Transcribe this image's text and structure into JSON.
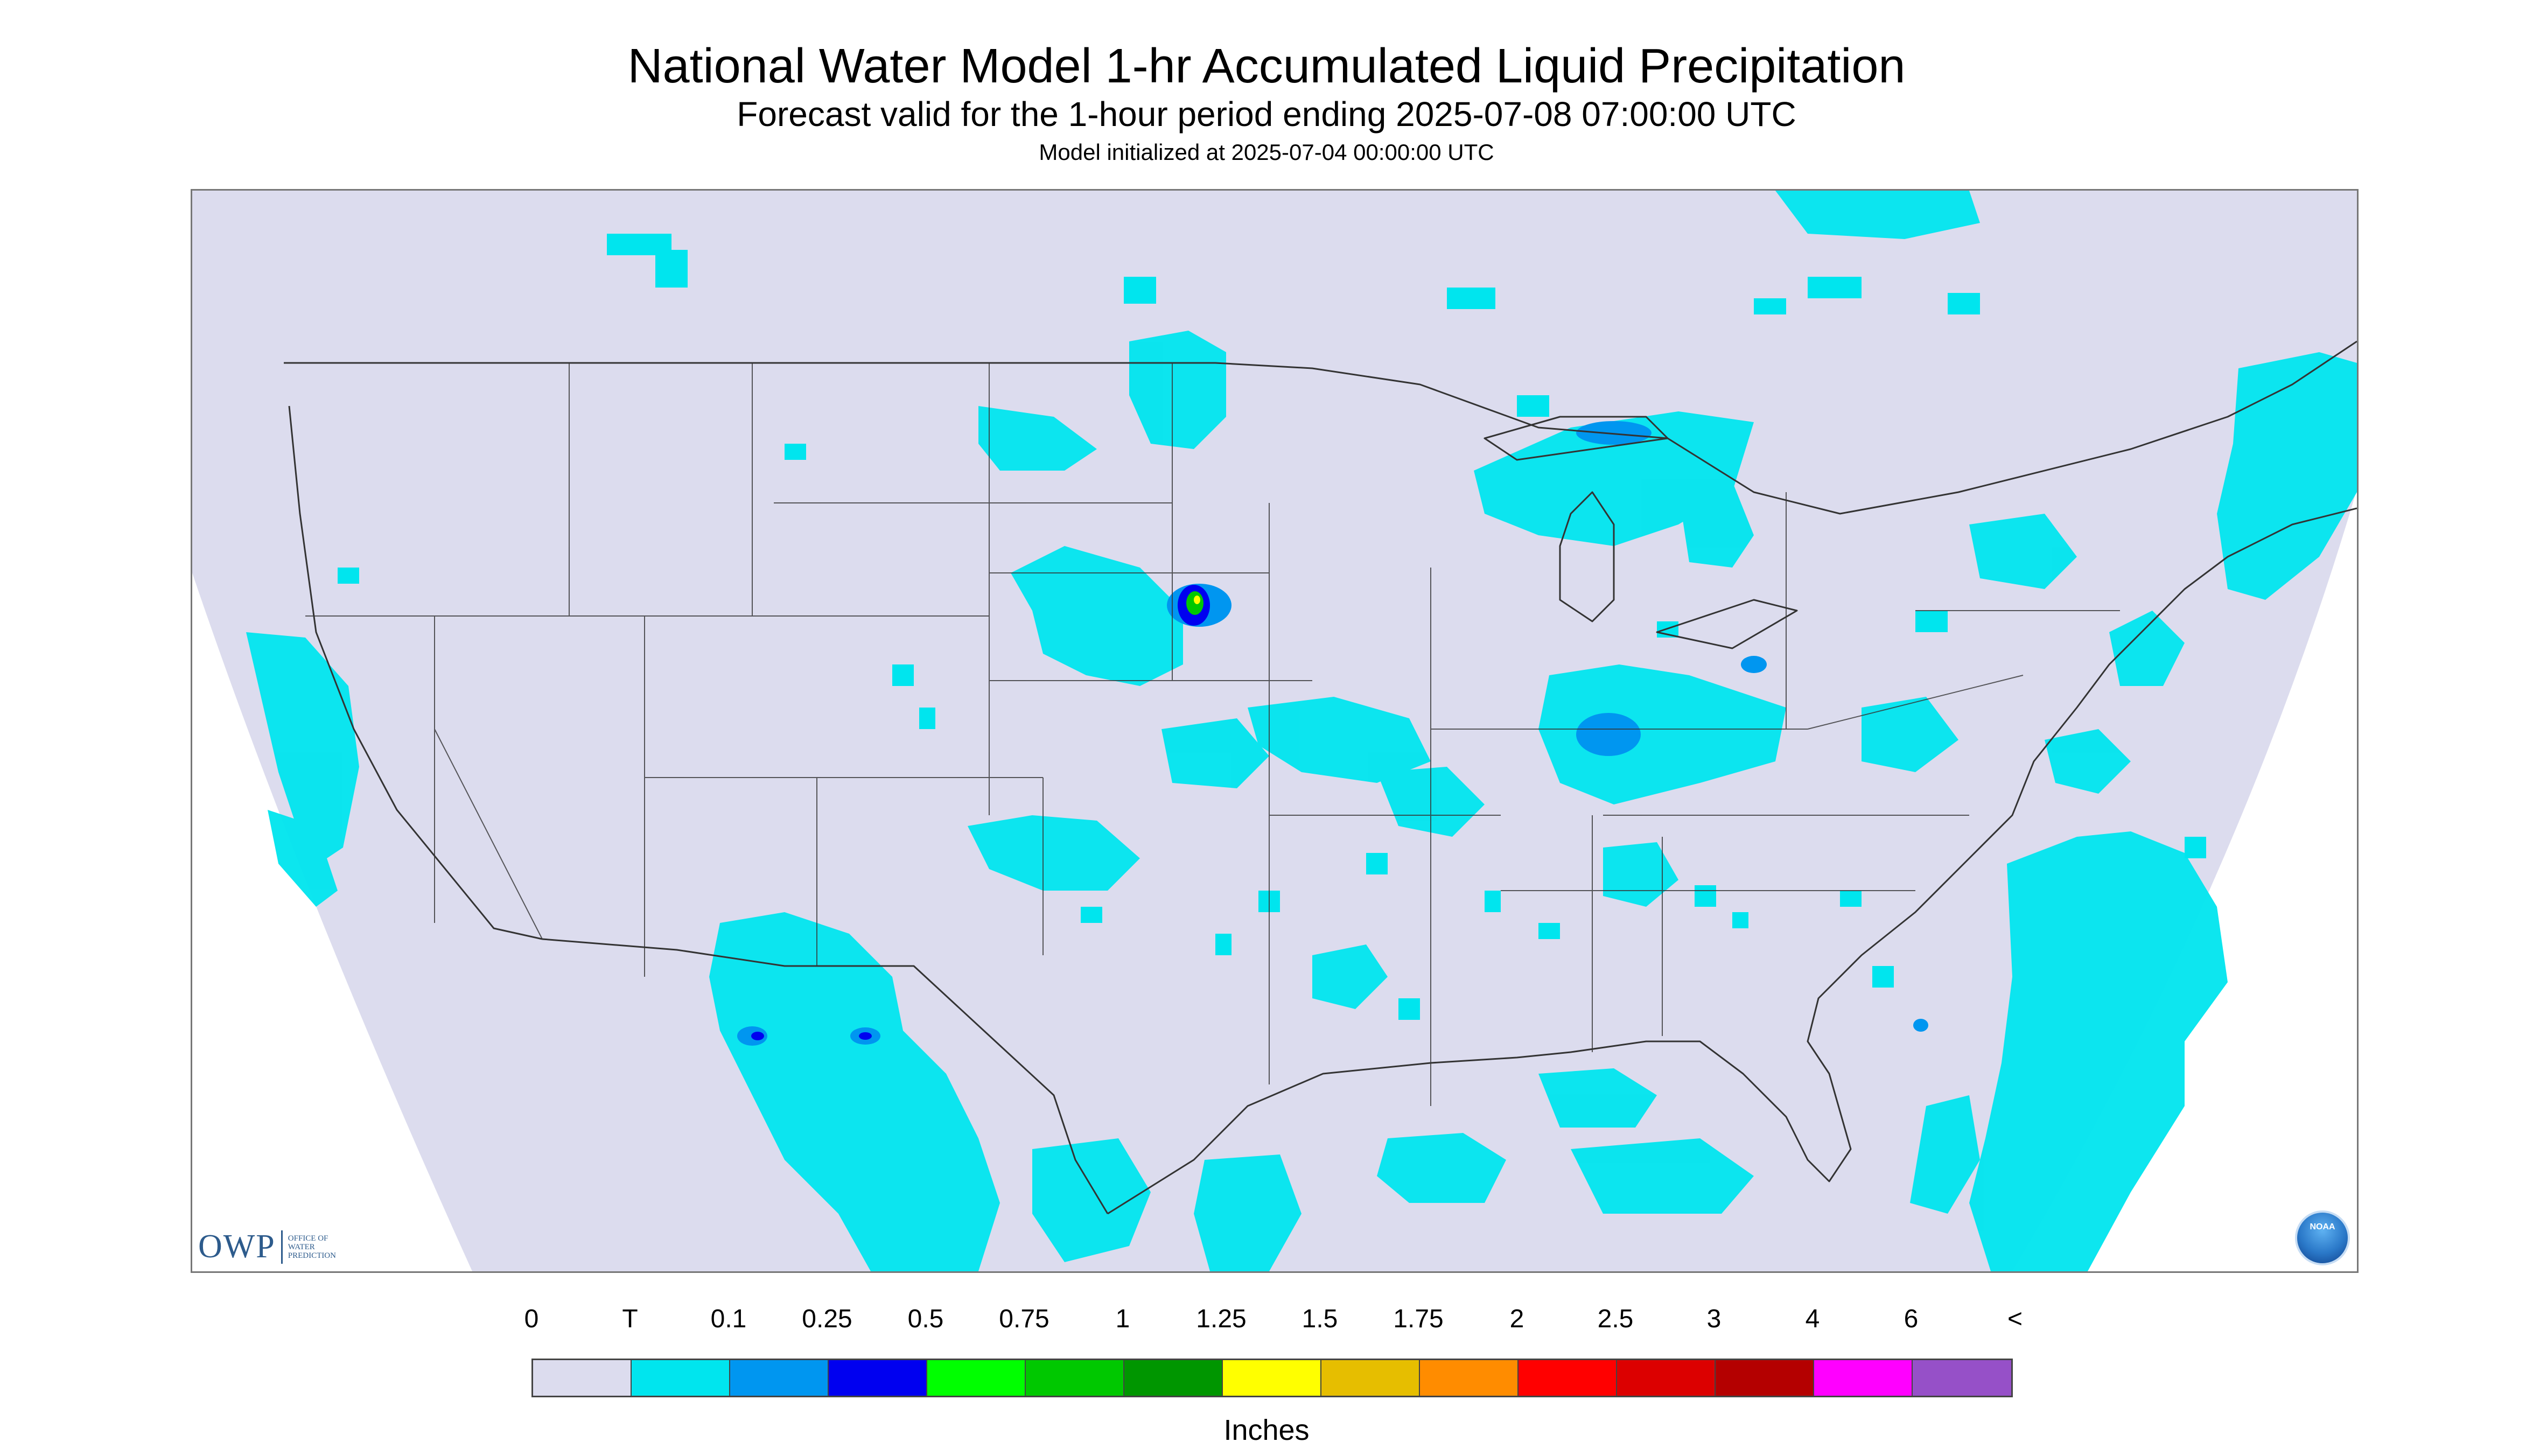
{
  "header": {
    "title": "National Water Model 1-hr Accumulated Liquid Precipitation",
    "subtitle": "Forecast valid for the 1-hour period ending 2025-07-08 07:00:00 UTC",
    "model_init": "Model initialized at 2025-07-04 00:00:00 UTC"
  },
  "map": {
    "background_color": "#dcdcee",
    "outside_color": "#ffffff",
    "trace_color": "#00e5ee",
    "light_color": "#0096f0",
    "moderate_color": "#0000f0",
    "heavy_color": "#00ff00",
    "border_color": "#333333"
  },
  "logos": {
    "owp_mark": "OWP",
    "owp_text_line1": "OFFICE OF",
    "owp_text_line2": "WATER",
    "owp_text_line3": "PREDICTION",
    "noaa_text": "NOAA"
  },
  "legend": {
    "labels": [
      "0",
      "T",
      "0.1",
      "0.25",
      "0.5",
      "0.75",
      "1",
      "1.25",
      "1.5",
      "1.75",
      "2",
      "2.5",
      "3",
      "4",
      "6",
      "<"
    ],
    "colors": [
      "#dcdcee",
      "#00e5ee",
      "#0096f0",
      "#0000f0",
      "#00ff00",
      "#00c800",
      "#009600",
      "#ffff00",
      "#e6be00",
      "#ff8c00",
      "#ff0000",
      "#dc0000",
      "#b40000",
      "#ff00ff",
      "#9650c8"
    ],
    "units": "Inches"
  }
}
